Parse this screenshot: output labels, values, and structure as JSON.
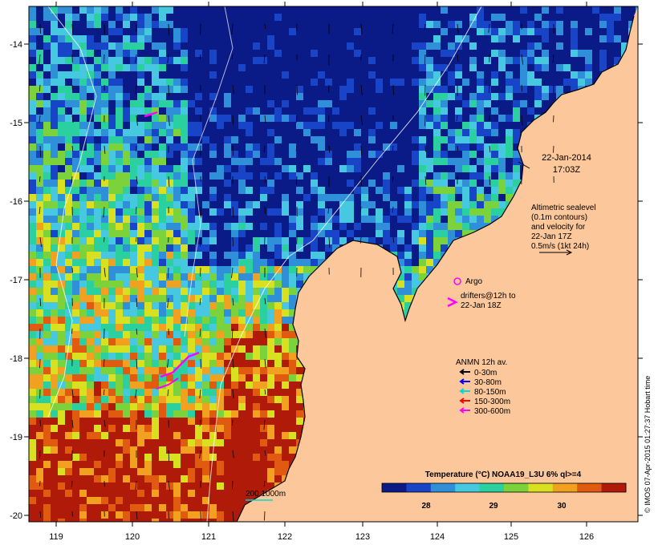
{
  "map": {
    "date": "22-Jan-2014",
    "time": "17:03Z",
    "x_ticks": [
      "119",
      "120",
      "121",
      "122",
      "123",
      "124",
      "125",
      "126"
    ],
    "y_ticks": [
      "-14",
      "-15",
      "-16",
      "-17",
      "-18",
      "-19",
      "-20"
    ],
    "land_color": "#fcc79a",
    "ocean_palette": [
      "#0a1a86",
      "#1844c8",
      "#2f8fd8",
      "#45c8e0",
      "#2bd0a0",
      "#7cd23a",
      "#d8e020",
      "#f2a020",
      "#e05a10",
      "#b01a08"
    ]
  },
  "annotations": {
    "altimetry_lines": [
      "Altimetric sealevel",
      "(0.1m contours)",
      "and velocity for",
      "22-Jan 17Z",
      "0.5m/s (1kt 24h)"
    ],
    "argo_label": "Argo",
    "drifters_lines": [
      "drifters@12h to",
      "22-Jan 18Z"
    ],
    "depth_scale_label": "200  1000m"
  },
  "anmn_legend": {
    "title": "ANMN 12h av.",
    "items": [
      {
        "label": "0-30m",
        "color": "#000000"
      },
      {
        "label": "30-80m",
        "color": "#0000ff"
      },
      {
        "label": "80-150m",
        "color": "#00d8d8"
      },
      {
        "label": "150-300m",
        "color": "#ff0000"
      },
      {
        "label": "300-600m",
        "color": "#ff00ff"
      }
    ]
  },
  "colorbar": {
    "title": "Temperature (°C) NOAA19_L3U 6% ql>=4",
    "ticks": [
      "28",
      "29",
      "30"
    ],
    "colors": [
      "#0a1a86",
      "#1844c8",
      "#2f8fd8",
      "#45c8e0",
      "#2bd0a0",
      "#7cd23a",
      "#d8e020",
      "#f2a020",
      "#e05a10",
      "#b01a08"
    ]
  },
  "credit": "© IMOS 07-Apr-2015 01:27:37 Hobart time"
}
